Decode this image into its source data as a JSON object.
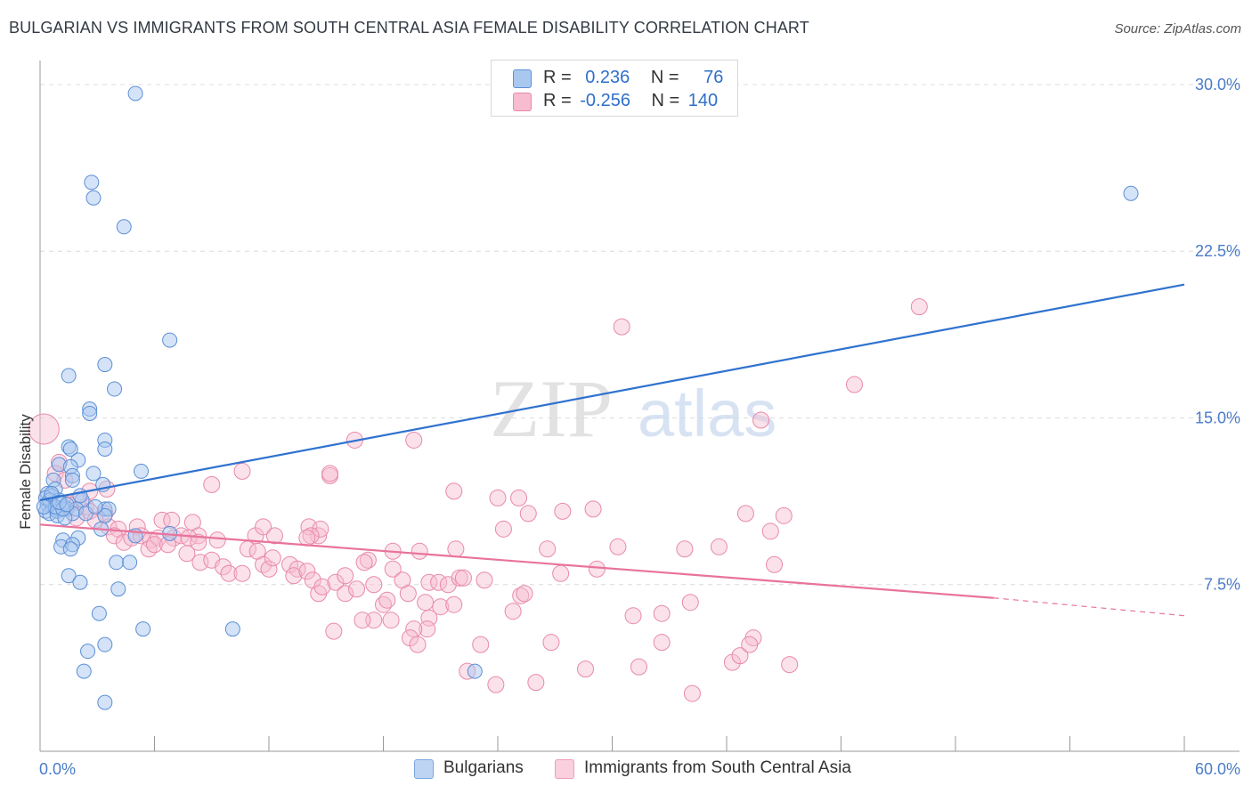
{
  "title": "BULGARIAN VS IMMIGRANTS FROM SOUTH CENTRAL ASIA FEMALE DISABILITY CORRELATION CHART",
  "source": "Source: ZipAtlas.com",
  "legend": {
    "rows": [
      {
        "r_label": "R =",
        "r_value": "0.236",
        "n_label": "N =",
        "n_value": "76"
      },
      {
        "r_label": "R =",
        "r_value": "-0.256",
        "n_label": "N =",
        "n_value": "140"
      }
    ]
  },
  "bottom_legend": {
    "series1": "Bulgarians",
    "series2": "Immigrants from South Central Asia"
  },
  "watermark": {
    "zip": "ZIP",
    "atlas": "atlas"
  },
  "colors": {
    "blue_fill": "#a9c8f0",
    "blue_stroke": "#5b8fd6",
    "blue_line": "#2f72cf",
    "pink_fill": "#f7bcd0",
    "pink_stroke": "#e889a9",
    "pink_line": "#e8739c",
    "grid": "#dcdcdc",
    "tick_text": "#4a7cc7"
  },
  "chart_data": {
    "type": "scatter",
    "title": "BULGARIAN VS IMMIGRANTS FROM SOUTH CENTRAL ASIA FEMALE DISABILITY CORRELATION CHART",
    "xlabel": "",
    "ylabel": "Female Disability",
    "xlim": [
      0,
      60
    ],
    "ylim": [
      0,
      31
    ],
    "x_tick_labels": [
      "0.0%",
      "60.0%"
    ],
    "y_ticks": [
      7.5,
      15.0,
      22.5,
      30.0
    ],
    "y_tick_labels": [
      "7.5%",
      "15.0%",
      "22.5%",
      "30.0%"
    ],
    "series": [
      {
        "name": "Bulgarians",
        "R": 0.236,
        "N": 76,
        "trend": {
          "x0": 0,
          "y0": 11.3,
          "x1": 60,
          "y1": 21.0
        },
        "points": [
          [
            5.0,
            29.6
          ],
          [
            2.7,
            25.6
          ],
          [
            2.8,
            24.9
          ],
          [
            4.4,
            23.6
          ],
          [
            6.8,
            18.5
          ],
          [
            3.4,
            17.4
          ],
          [
            1.5,
            16.9
          ],
          [
            3.9,
            16.3
          ],
          [
            2.6,
            15.4
          ],
          [
            2.6,
            15.2
          ],
          [
            3.4,
            14.0
          ],
          [
            1.5,
            13.7
          ],
          [
            1.6,
            13.6
          ],
          [
            3.4,
            13.6
          ],
          [
            2.0,
            13.1
          ],
          [
            1.0,
            12.9
          ],
          [
            1.6,
            12.8
          ],
          [
            5.3,
            12.6
          ],
          [
            2.8,
            12.5
          ],
          [
            1.7,
            12.4
          ],
          [
            1.7,
            12.2
          ],
          [
            0.7,
            12.2
          ],
          [
            0.8,
            11.8
          ],
          [
            3.3,
            12.0
          ],
          [
            0.4,
            11.6
          ],
          [
            0.6,
            11.5
          ],
          [
            1.0,
            11.3
          ],
          [
            2.2,
            11.3
          ],
          [
            0.4,
            11.1
          ],
          [
            0.6,
            11.1
          ],
          [
            1.3,
            11.0
          ],
          [
            1.4,
            10.9
          ],
          [
            0.8,
            10.9
          ],
          [
            1.9,
            10.9
          ],
          [
            3.4,
            10.9
          ],
          [
            3.6,
            10.9
          ],
          [
            0.3,
            10.8
          ],
          [
            0.5,
            10.7
          ],
          [
            0.9,
            10.8
          ],
          [
            1.7,
            10.7
          ],
          [
            0.9,
            10.6
          ],
          [
            1.3,
            10.5
          ],
          [
            2.4,
            10.7
          ],
          [
            3.4,
            10.6
          ],
          [
            3.2,
            10.0
          ],
          [
            6.8,
            9.8
          ],
          [
            2.0,
            9.6
          ],
          [
            1.2,
            9.5
          ],
          [
            5.0,
            9.7
          ],
          [
            1.1,
            9.2
          ],
          [
            1.7,
            9.3
          ],
          [
            1.6,
            9.1
          ],
          [
            4.0,
            8.5
          ],
          [
            4.7,
            8.5
          ],
          [
            1.5,
            7.9
          ],
          [
            2.1,
            7.6
          ],
          [
            4.1,
            7.3
          ],
          [
            3.1,
            6.2
          ],
          [
            5.4,
            5.5
          ],
          [
            10.1,
            5.5
          ],
          [
            3.4,
            4.8
          ],
          [
            2.5,
            4.5
          ],
          [
            2.3,
            3.6
          ],
          [
            22.8,
            3.6
          ],
          [
            3.4,
            2.2
          ],
          [
            57.2,
            25.1
          ],
          [
            0.3,
            11.4
          ],
          [
            0.5,
            11.3
          ],
          [
            0.8,
            11.0
          ],
          [
            1.2,
            10.9
          ],
          [
            0.2,
            11.0
          ],
          [
            2.1,
            11.5
          ],
          [
            0.6,
            11.6
          ],
          [
            1.0,
            11.2
          ],
          [
            1.4,
            11.1
          ],
          [
            2.9,
            11.0
          ]
        ]
      },
      {
        "name": "Immigrants from South Central Asia",
        "R": -0.256,
        "N": 140,
        "trend": {
          "x0": 0,
          "y0": 10.2,
          "x1": 50,
          "y1": 6.9
        },
        "trend_dashed": {
          "x0": 50,
          "y0": 6.9,
          "x1": 60,
          "y1": 6.1
        },
        "points": [
          [
            0.2,
            14.5
          ],
          [
            1.0,
            13.0
          ],
          [
            0.8,
            12.5
          ],
          [
            1.3,
            12.2
          ],
          [
            2.6,
            11.7
          ],
          [
            3.5,
            11.8
          ],
          [
            2.0,
            11.3
          ],
          [
            1.5,
            11.1
          ],
          [
            2.4,
            11.0
          ],
          [
            2.6,
            10.8
          ],
          [
            3.4,
            10.7
          ],
          [
            1.9,
            10.5
          ],
          [
            2.9,
            10.4
          ],
          [
            3.6,
            10.1
          ],
          [
            4.1,
            10.0
          ],
          [
            5.1,
            10.1
          ],
          [
            6.4,
            10.4
          ],
          [
            6.9,
            10.4
          ],
          [
            8.0,
            10.3
          ],
          [
            8.3,
            9.7
          ],
          [
            9.3,
            9.5
          ],
          [
            3.9,
            9.7
          ],
          [
            4.4,
            9.4
          ],
          [
            4.8,
            9.6
          ],
          [
            5.3,
            9.7
          ],
          [
            5.8,
            9.5
          ],
          [
            6.2,
            9.6
          ],
          [
            7.0,
            9.6
          ],
          [
            7.4,
            9.7
          ],
          [
            7.8,
            9.6
          ],
          [
            8.3,
            9.4
          ],
          [
            5.7,
            9.1
          ],
          [
            6.0,
            9.3
          ],
          [
            6.7,
            9.3
          ],
          [
            7.7,
            8.9
          ],
          [
            8.4,
            8.5
          ],
          [
            9.0,
            8.6
          ],
          [
            9.6,
            8.3
          ],
          [
            9.9,
            8.0
          ],
          [
            10.6,
            8.0
          ],
          [
            10.9,
            9.1
          ],
          [
            11.4,
            9.0
          ],
          [
            11.7,
            8.4
          ],
          [
            12.0,
            8.2
          ],
          [
            12.2,
            8.7
          ],
          [
            13.1,
            8.4
          ],
          [
            13.5,
            8.2
          ],
          [
            13.3,
            7.9
          ],
          [
            14.0,
            8.1
          ],
          [
            14.3,
            7.7
          ],
          [
            14.6,
            7.1
          ],
          [
            14.8,
            7.4
          ],
          [
            15.5,
            7.6
          ],
          [
            16.0,
            7.1
          ],
          [
            16.6,
            7.3
          ],
          [
            16.0,
            7.9
          ],
          [
            17.2,
            8.6
          ],
          [
            17.0,
            8.5
          ],
          [
            17.5,
            7.5
          ],
          [
            18.0,
            6.6
          ],
          [
            18.2,
            6.8
          ],
          [
            18.5,
            8.2
          ],
          [
            19.0,
            7.7
          ],
          [
            19.3,
            7.1
          ],
          [
            18.5,
            9.0
          ],
          [
            19.9,
            9.0
          ],
          [
            20.4,
            7.6
          ],
          [
            20.9,
            7.6
          ],
          [
            21.4,
            7.5
          ],
          [
            22.0,
            7.8
          ],
          [
            22.2,
            7.8
          ],
          [
            23.3,
            7.7
          ],
          [
            20.2,
            6.7
          ],
          [
            21.0,
            6.5
          ],
          [
            20.4,
            6.0
          ],
          [
            20.3,
            5.5
          ],
          [
            19.6,
            5.5
          ],
          [
            18.4,
            5.9
          ],
          [
            17.5,
            5.9
          ],
          [
            16.9,
            5.9
          ],
          [
            15.4,
            5.4
          ],
          [
            19.4,
            5.1
          ],
          [
            19.8,
            4.8
          ],
          [
            21.7,
            6.6
          ],
          [
            22.4,
            3.6
          ],
          [
            23.1,
            4.8
          ],
          [
            23.9,
            3.0
          ],
          [
            24.8,
            6.3
          ],
          [
            25.2,
            7.0
          ],
          [
            25.4,
            7.1
          ],
          [
            26.0,
            3.1
          ],
          [
            26.8,
            4.9
          ],
          [
            26.6,
            9.1
          ],
          [
            27.3,
            8.0
          ],
          [
            28.6,
            3.7
          ],
          [
            29.2,
            8.2
          ],
          [
            30.3,
            9.2
          ],
          [
            31.1,
            6.1
          ],
          [
            31.4,
            3.8
          ],
          [
            32.6,
            6.2
          ],
          [
            32.6,
            4.9
          ],
          [
            33.8,
            9.1
          ],
          [
            34.1,
            6.7
          ],
          [
            34.2,
            2.6
          ],
          [
            35.6,
            9.2
          ],
          [
            36.3,
            4.0
          ],
          [
            36.7,
            4.3
          ],
          [
            37.4,
            5.1
          ],
          [
            37.0,
            10.7
          ],
          [
            37.2,
            4.8
          ],
          [
            38.3,
            9.9
          ],
          [
            37.8,
            14.9
          ],
          [
            38.5,
            8.4
          ],
          [
            39.3,
            3.9
          ],
          [
            39.0,
            10.6
          ],
          [
            42.7,
            16.5
          ],
          [
            46.1,
            20.0
          ],
          [
            9.0,
            12.0
          ],
          [
            10.6,
            12.6
          ],
          [
            11.3,
            9.7
          ],
          [
            11.7,
            10.1
          ],
          [
            12.3,
            9.7
          ],
          [
            14.1,
            10.1
          ],
          [
            14.6,
            9.7
          ],
          [
            14.7,
            10.0
          ],
          [
            14.2,
            9.7
          ],
          [
            14.0,
            9.6
          ],
          [
            15.2,
            12.4
          ],
          [
            15.2,
            12.5
          ],
          [
            16.5,
            14.0
          ],
          [
            19.6,
            14.0
          ],
          [
            21.7,
            11.7
          ],
          [
            21.8,
            9.1
          ],
          [
            24.3,
            10.0
          ],
          [
            24.0,
            11.4
          ],
          [
            25.1,
            11.4
          ],
          [
            25.6,
            10.7
          ],
          [
            27.4,
            10.8
          ],
          [
            30.5,
            19.1
          ],
          [
            29.0,
            10.9
          ]
        ]
      }
    ]
  }
}
